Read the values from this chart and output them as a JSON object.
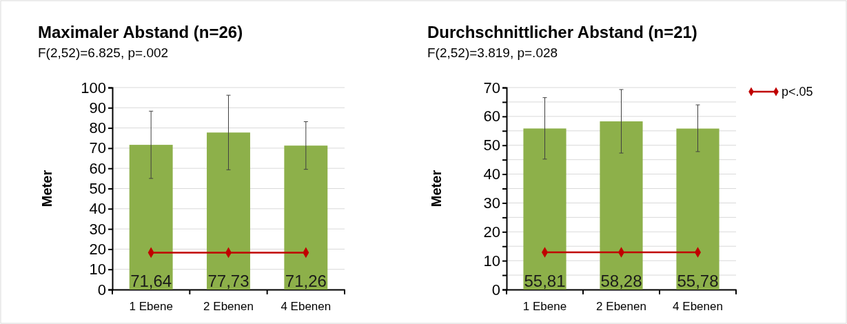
{
  "chart_data": [
    {
      "type": "bar",
      "title": "Maximaler Abstand (n=26)",
      "subtitle": "F(2,52)=6.825, p=.002",
      "ylabel": "Meter",
      "categories": [
        "1 Ebene",
        "2 Ebenen",
        "4 Ebenen"
      ],
      "series": [
        {
          "color": "#8db04a",
          "values": [
            71.64,
            77.73,
            71.26
          ],
          "value_labels": [
            "71,64",
            "77,73",
            "71,26"
          ],
          "errors": [
            [
              55,
              88.3
            ],
            [
              59.3,
              96.2
            ],
            [
              59.5,
              83.1
            ]
          ]
        },
        {
          "type": "line",
          "color": "#c00000",
          "values": [
            18.3,
            18.3,
            18.3
          ],
          "marker": "diamond",
          "line_style": "solid"
        }
      ],
      "ylim": [
        0,
        100
      ],
      "yticks": [
        0,
        10,
        20,
        30,
        40,
        50,
        60,
        70,
        80,
        90,
        100
      ],
      "grid": "y",
      "legend": false
    },
    {
      "type": "bar",
      "title": "Durchschnittlicher Abstand (n=21)",
      "subtitle": "F(2,52)=3.819, p=.028",
      "ylabel": "Meter",
      "categories": [
        "1 Ebene",
        "2 Ebenen",
        "4 Ebenen"
      ],
      "series": [
        {
          "color": "#8db04a",
          "values": [
            55.81,
            58.28,
            55.78
          ],
          "value_labels": [
            "55,81",
            "58,28",
            "55,78"
          ],
          "errors": [
            [
              45.2,
              66.5
            ],
            [
              47.3,
              69.3
            ],
            [
              47.8,
              64
            ]
          ]
        },
        {
          "type": "line",
          "name": "p<.05",
          "color": "#c00000",
          "values": [
            12.9,
            12.9,
            12.9
          ],
          "marker": "diamond",
          "line_style": "solid"
        }
      ],
      "ylim": [
        0,
        70
      ],
      "yticks": [
        0,
        {
          "value": 5,
          "label": null
        },
        10,
        {
          "value": 15,
          "label": null
        },
        20,
        {
          "value": 25,
          "label": null
        },
        30,
        {
          "value": 35,
          "label": null
        },
        40,
        {
          "value": 45,
          "label": null
        },
        50,
        {
          "value": 55,
          "label": null
        },
        60,
        {
          "value": 65,
          "label": null
        },
        70
      ],
      "grid": "y",
      "legend": "top right"
    }
  ]
}
